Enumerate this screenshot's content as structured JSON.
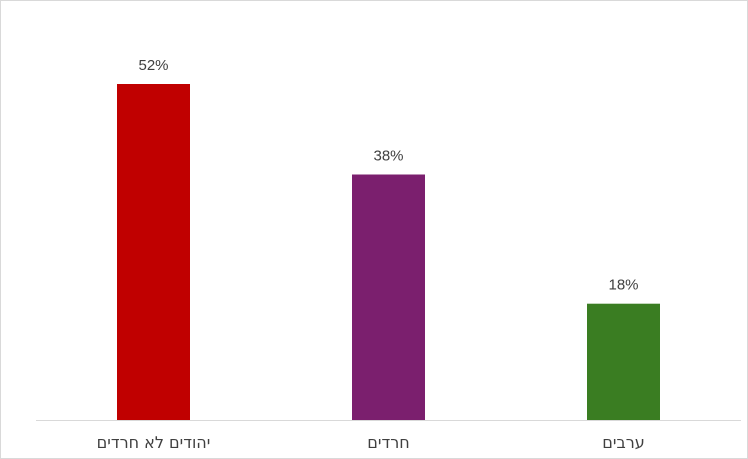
{
  "chart_data": {
    "type": "bar",
    "categories": [
      "יהודים לא חרדים",
      "חרדים",
      "ערבים"
    ],
    "values": [
      52,
      38,
      18
    ],
    "data_labels": [
      "52%",
      "38%",
      "18%"
    ],
    "colors": [
      "#c00000",
      "#7b1f6e",
      "#3a7d22"
    ],
    "title": "",
    "xlabel": "",
    "ylabel": "",
    "ylim": [
      0,
      60
    ],
    "grid": false,
    "legend": "none"
  }
}
